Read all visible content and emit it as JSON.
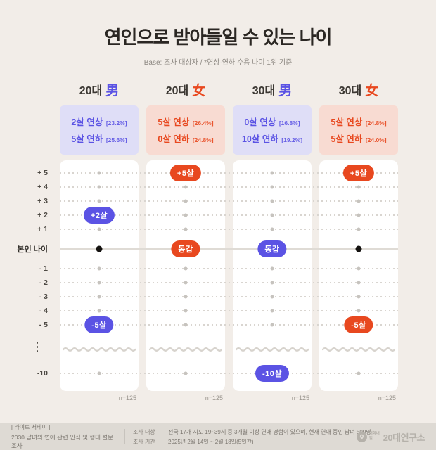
{
  "title": "연인으로 받아들일 수 있는 나이",
  "subtitle": "Base: 조사 대상자  /  *연상·연하 수용 나이 1위 기준",
  "colors": {
    "male": "#5B53E4",
    "female": "#E8481F",
    "male_box_bg": "#DFDEF7",
    "female_box_bg": "#F8DBD2",
    "page_bg": "#F2EDE8",
    "card_bg": "#FFFFFF",
    "footer_bg": "#DEDAD4",
    "gray_dot": "#C6C3BE",
    "self_dot": "#141210"
  },
  "axis": {
    "tick_labels": [
      "+ 5",
      "+ 4",
      "+ 3",
      "+ 2",
      "+ 1",
      "본인 나이",
      "- 1",
      "- 2",
      "- 3",
      "- 4",
      "- 5",
      "-10"
    ]
  },
  "columns": [
    {
      "age_group": "20대",
      "gender": "男",
      "gender_type": "male",
      "summary": [
        {
          "label": "2살 연상",
          "pct": "[23.2%]"
        },
        {
          "label": "5살 연하",
          "pct": "[25.6%]"
        }
      ],
      "rows": [
        {
          "type": "dot"
        },
        {
          "type": "dot"
        },
        {
          "type": "dot"
        },
        {
          "type": "badge",
          "text": "+2살"
        },
        {
          "type": "dot"
        },
        {
          "type": "self-dot"
        },
        {
          "type": "dot"
        },
        {
          "type": "dot"
        },
        {
          "type": "dot"
        },
        {
          "type": "dot"
        },
        {
          "type": "badge",
          "text": "-5살"
        },
        {
          "type": "dot"
        }
      ],
      "sample": "n=125"
    },
    {
      "age_group": "20대",
      "gender": "女",
      "gender_type": "female",
      "summary": [
        {
          "label": "5살 연상",
          "pct": "[26.4%]"
        },
        {
          "label": "0살 연하",
          "pct": "[24.8%]"
        }
      ],
      "rows": [
        {
          "type": "badge",
          "text": "+5살"
        },
        {
          "type": "dot"
        },
        {
          "type": "dot"
        },
        {
          "type": "dot"
        },
        {
          "type": "dot"
        },
        {
          "type": "badge",
          "text": "동갑"
        },
        {
          "type": "dot"
        },
        {
          "type": "dot"
        },
        {
          "type": "dot"
        },
        {
          "type": "dot"
        },
        {
          "type": "dot"
        },
        {
          "type": "dot"
        }
      ],
      "sample": "n=125"
    },
    {
      "age_group": "30대",
      "gender": "男",
      "gender_type": "male",
      "summary": [
        {
          "label": "0살 연상",
          "pct": "[16.8%]"
        },
        {
          "label": "10살 연하",
          "pct": "[19.2%]"
        }
      ],
      "rows": [
        {
          "type": "dot"
        },
        {
          "type": "dot"
        },
        {
          "type": "dot"
        },
        {
          "type": "dot"
        },
        {
          "type": "dot"
        },
        {
          "type": "badge",
          "text": "동갑"
        },
        {
          "type": "dot"
        },
        {
          "type": "dot"
        },
        {
          "type": "dot"
        },
        {
          "type": "dot"
        },
        {
          "type": "dot"
        },
        {
          "type": "badge",
          "text": "-10살"
        }
      ],
      "sample": "n=125"
    },
    {
      "age_group": "30대",
      "gender": "女",
      "gender_type": "female",
      "summary": [
        {
          "label": "5살 연상",
          "pct": "[24.8%]"
        },
        {
          "label": "5살 연하",
          "pct": "[24.0%]"
        }
      ],
      "rows": [
        {
          "type": "badge",
          "text": "+5살"
        },
        {
          "type": "dot"
        },
        {
          "type": "dot"
        },
        {
          "type": "dot"
        },
        {
          "type": "dot"
        },
        {
          "type": "self-dot"
        },
        {
          "type": "dot"
        },
        {
          "type": "dot"
        },
        {
          "type": "dot"
        },
        {
          "type": "dot"
        },
        {
          "type": "badge",
          "text": "-5살"
        },
        {
          "type": "dot"
        }
      ],
      "sample": "n=125"
    }
  ],
  "footer": {
    "survey_tag": "[ 라이트 서베이 ]",
    "survey_title": "2030 남녀의 연애 관련 인식 및 행태 설문조사",
    "rows": [
      {
        "label": "조사 대상",
        "value": "전국 17개 시도 19~39세 중 3개월 이상 연애 경험이 있으며, 현재 연애 중인 남녀 500명"
      },
      {
        "label": "조사 기간",
        "value": "2025년 2월 14일 ~ 2월 18일(5일간)"
      }
    ],
    "logo_prefix": "대학내일",
    "logo_name": "20대연구소"
  },
  "chart_data": {
    "type": "scatter",
    "title": "연인으로 받아들일 수 있는 나이",
    "subtitle": "Base: 조사 대상자 / *연상·연하 수용 나이 1위 기준",
    "categories": [
      "20대 男",
      "20대 女",
      "30대 男",
      "30대 女"
    ],
    "y_ticks": [
      5,
      4,
      3,
      2,
      1,
      0,
      -1,
      -2,
      -3,
      -4,
      -5,
      -10
    ],
    "y_zero_label": "본인 나이",
    "legend_position": "none",
    "grid": "dotted-horizontal",
    "series": [
      {
        "name": "20대 男",
        "older_limit": 2,
        "older_pct": 23.2,
        "younger_limit": -5,
        "younger_pct": 25.6,
        "n": 125
      },
      {
        "name": "20대 女",
        "older_limit": 5,
        "older_pct": 26.4,
        "younger_limit": 0,
        "younger_pct": 24.8,
        "n": 125
      },
      {
        "name": "30대 男",
        "older_limit": 0,
        "older_pct": 16.8,
        "younger_limit": -10,
        "younger_pct": 19.2,
        "n": 125
      },
      {
        "name": "30대 女",
        "older_limit": 5,
        "older_pct": 24.8,
        "younger_limit": -5,
        "younger_pct": 24.0,
        "n": 125
      }
    ]
  }
}
